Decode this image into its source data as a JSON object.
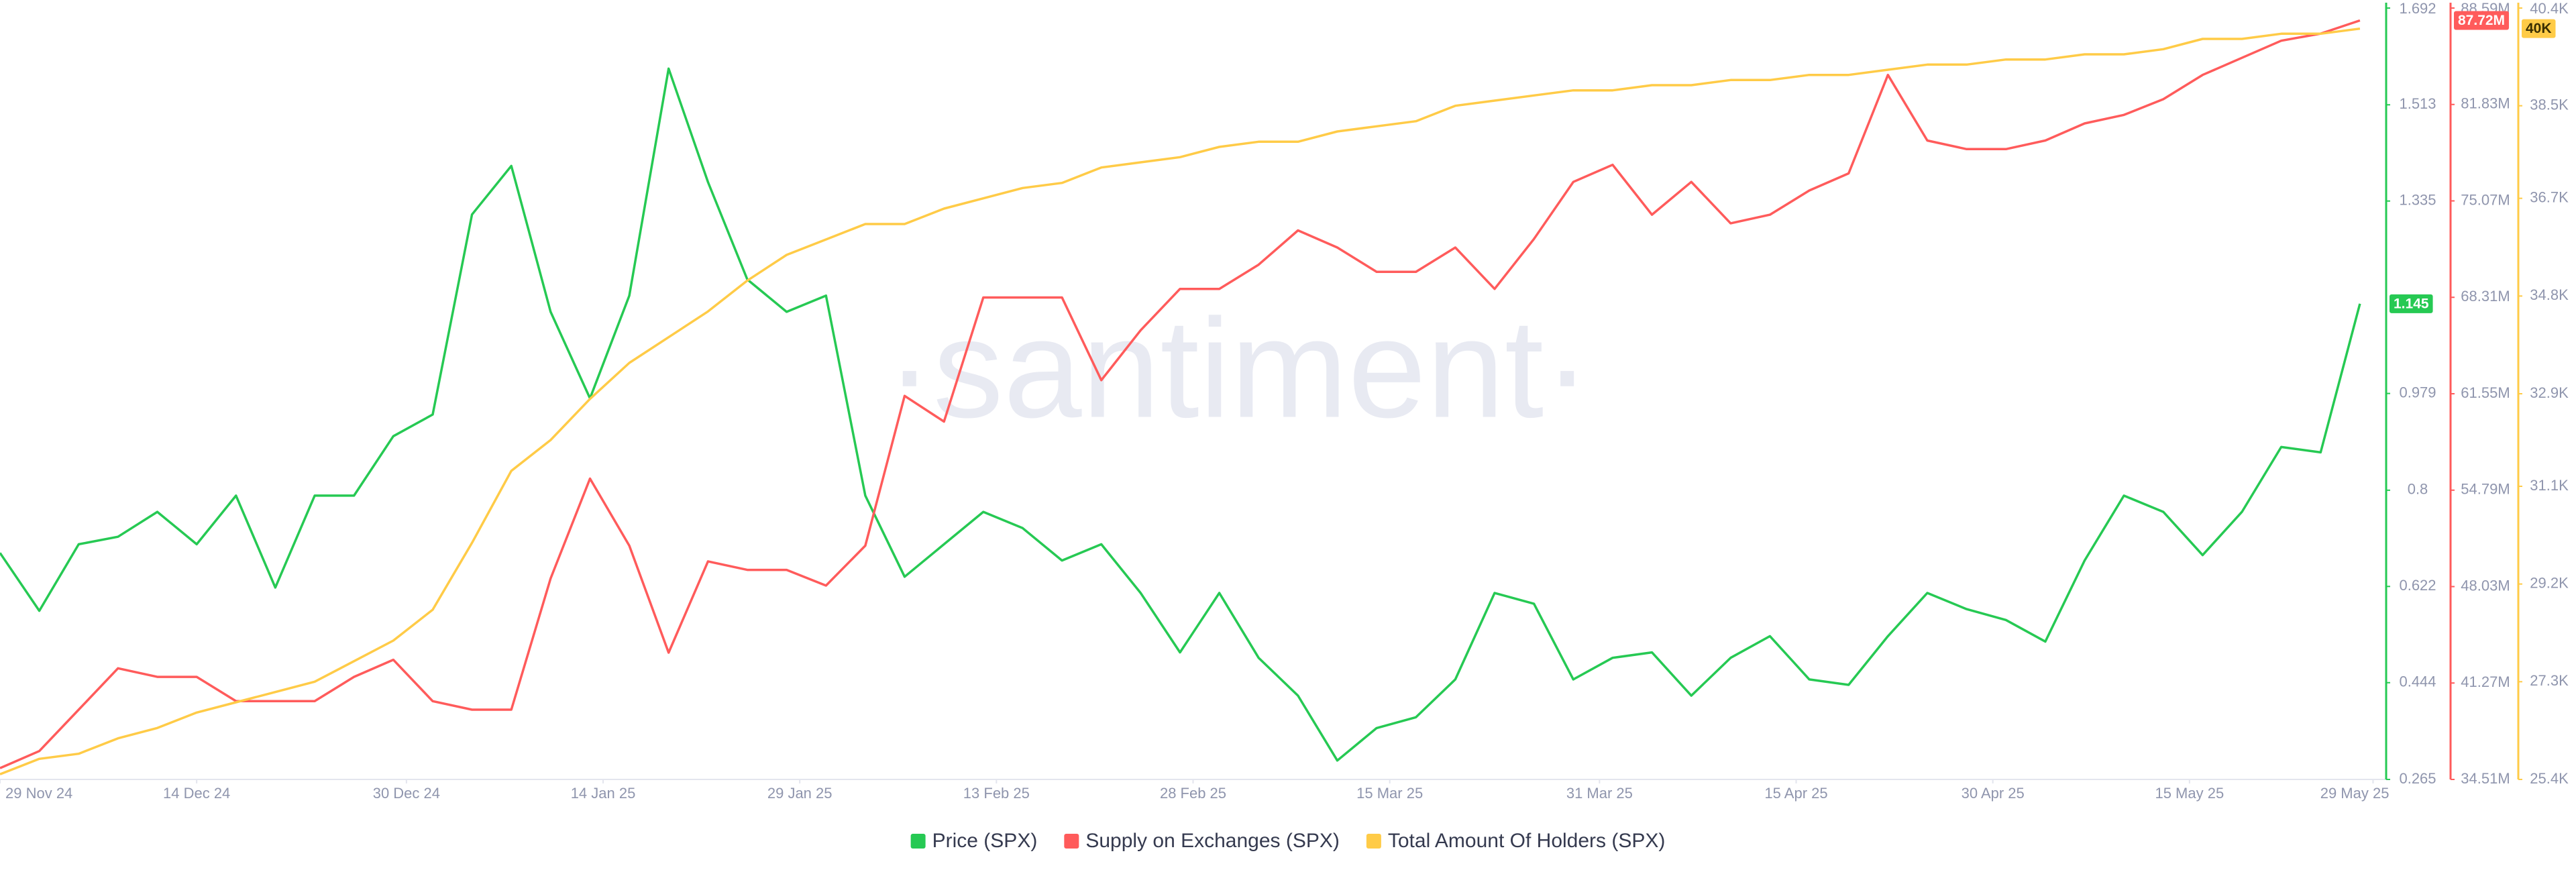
{
  "chart_data": {
    "type": "line",
    "watermark": "·santiment·",
    "x": [
      "2024-11-29",
      "2024-12-02",
      "2024-12-05",
      "2024-12-08",
      "2024-12-11",
      "2024-12-14",
      "2024-12-17",
      "2024-12-20",
      "2024-12-23",
      "2024-12-26",
      "2024-12-29",
      "2025-01-01",
      "2025-01-04",
      "2025-01-07",
      "2025-01-10",
      "2025-01-13",
      "2025-01-16",
      "2025-01-19",
      "2025-01-22",
      "2025-01-25",
      "2025-01-28",
      "2025-01-31",
      "2025-02-03",
      "2025-02-06",
      "2025-02-09",
      "2025-02-12",
      "2025-02-15",
      "2025-02-18",
      "2025-02-21",
      "2025-02-24",
      "2025-02-27",
      "2025-03-02",
      "2025-03-05",
      "2025-03-08",
      "2025-03-11",
      "2025-03-14",
      "2025-03-17",
      "2025-03-20",
      "2025-03-23",
      "2025-03-26",
      "2025-03-29",
      "2025-04-01",
      "2025-04-04",
      "2025-04-07",
      "2025-04-10",
      "2025-04-13",
      "2025-04-16",
      "2025-04-19",
      "2025-04-22",
      "2025-04-25",
      "2025-04-28",
      "2025-05-01",
      "2025-05-04",
      "2025-05-07",
      "2025-05-10",
      "2025-05-13",
      "2025-05-16",
      "2025-05-19",
      "2025-05-22",
      "2025-05-25",
      "2025-05-28"
    ],
    "xlim": [
      "2024-11-29",
      "2025-05-30"
    ],
    "xticks": [
      {
        "value": "2024-11-29",
        "label": "29 Nov 24"
      },
      {
        "value": "2024-12-14",
        "label": "14 Dec 24"
      },
      {
        "value": "2024-12-30",
        "label": "30 Dec 24"
      },
      {
        "value": "2025-01-14",
        "label": "14 Jan 25"
      },
      {
        "value": "2025-01-29",
        "label": "29 Jan 25"
      },
      {
        "value": "2025-02-13",
        "label": "13 Feb 25"
      },
      {
        "value": "2025-02-28",
        "label": "28 Feb 25"
      },
      {
        "value": "2025-03-15",
        "label": "15 Mar 25"
      },
      {
        "value": "2025-03-31",
        "label": "31 Mar 25"
      },
      {
        "value": "2025-04-15",
        "label": "15 Apr 25"
      },
      {
        "value": "2025-04-30",
        "label": "30 Apr 25"
      },
      {
        "value": "2025-05-15",
        "label": "15 May 25"
      },
      {
        "value": "2025-05-29",
        "label": "29 May 25"
      }
    ],
    "ylim": [
      0.265,
      1.692
    ],
    "yticks": [
      0.265,
      0.444,
      0.622,
      0.8,
      0.979,
      1.335,
      1.513,
      1.692
    ],
    "y2lim": [
      34.51,
      88.59
    ],
    "y2ticks": [
      {
        "value": 34.51,
        "label": "34.51M"
      },
      {
        "value": 41.27,
        "label": "41.27M"
      },
      {
        "value": 48.03,
        "label": "48.03M"
      },
      {
        "value": 54.79,
        "label": "54.79M"
      },
      {
        "value": 61.55,
        "label": "61.55M"
      },
      {
        "value": 68.31,
        "label": "68.31M"
      },
      {
        "value": 75.07,
        "label": "75.07M"
      },
      {
        "value": 81.83,
        "label": "81.83M"
      },
      {
        "value": 88.59,
        "label": "88.59M"
      }
    ],
    "y3lim": [
      25.4,
      40.4
    ],
    "y3ticks": [
      {
        "value": 25.4,
        "label": "25.4K"
      },
      {
        "value": 27.3,
        "label": "27.3K"
      },
      {
        "value": 29.2,
        "label": "29.2K"
      },
      {
        "value": 31.1,
        "label": "31.1K"
      },
      {
        "value": 32.9,
        "label": "32.9K"
      },
      {
        "value": 34.8,
        "label": "34.8K"
      },
      {
        "value": 36.7,
        "label": "36.7K"
      },
      {
        "value": 38.5,
        "label": "38.5K"
      },
      {
        "value": 40.4,
        "label": "40.4K"
      }
    ],
    "series": [
      {
        "name": "Price (SPX)",
        "color": "#26c953",
        "axis": "y",
        "values": [
          0.684,
          0.577,
          0.7,
          0.714,
          0.76,
          0.7,
          0.79,
          0.62,
          0.79,
          0.79,
          0.9,
          0.94,
          1.31,
          1.4,
          1.13,
          0.97,
          1.16,
          1.58,
          1.37,
          1.19,
          1.13,
          1.16,
          0.79,
          0.64,
          0.7,
          0.76,
          0.73,
          0.67,
          0.7,
          0.61,
          0.5,
          0.61,
          0.49,
          0.42,
          0.3,
          0.36,
          0.38,
          0.45,
          0.61,
          0.59,
          0.45,
          0.49,
          0.5,
          0.42,
          0.49,
          0.53,
          0.45,
          0.44,
          0.53,
          0.61,
          0.58,
          0.56,
          0.52,
          0.67,
          0.79,
          0.76,
          0.68,
          0.76,
          0.88,
          0.87,
          1.145
        ]
      },
      {
        "name": "Supply on Exchanges (SPX)",
        "color": "#ff5b5b",
        "axis": "y2",
        "values": [
          35.3,
          36.5,
          39.4,
          42.3,
          41.7,
          41.7,
          40.0,
          40.0,
          40.0,
          41.7,
          42.9,
          40.0,
          39.4,
          39.4,
          48.6,
          55.6,
          50.9,
          43.4,
          49.8,
          49.2,
          49.2,
          48.1,
          50.9,
          61.4,
          59.6,
          68.3,
          68.3,
          68.3,
          62.5,
          66.0,
          68.9,
          68.9,
          70.6,
          73.0,
          71.8,
          70.1,
          70.1,
          71.8,
          68.9,
          72.4,
          76.4,
          77.6,
          74.1,
          76.4,
          73.5,
          74.1,
          75.8,
          77.0,
          83.9,
          79.3,
          78.7,
          78.7,
          79.3,
          80.5,
          81.1,
          82.2,
          83.9,
          85.1,
          86.3,
          86.8,
          87.72
        ],
        "value_labels": [
          null,
          null,
          null,
          null,
          null,
          null,
          null,
          null,
          null,
          null,
          null,
          null,
          null,
          null,
          null,
          null,
          null,
          null,
          null,
          null,
          null,
          null,
          null,
          null,
          null,
          null,
          null,
          null,
          null,
          null,
          null,
          null,
          null,
          null,
          null,
          null,
          null,
          null,
          null,
          null,
          null,
          null,
          null,
          null,
          null,
          null,
          null,
          null,
          null,
          null,
          null,
          null,
          null,
          null,
          null,
          null,
          null,
          null,
          null,
          null,
          "87.72M"
        ]
      },
      {
        "name": "Total Amount Of Holders (SPX)",
        "color": "#ffcb47",
        "axis": "y3",
        "values": [
          25.5,
          25.8,
          25.9,
          26.2,
          26.4,
          26.7,
          26.9,
          27.1,
          27.3,
          27.7,
          28.1,
          28.7,
          30.0,
          31.4,
          32.0,
          32.8,
          33.5,
          34.0,
          34.5,
          35.1,
          35.6,
          35.9,
          36.2,
          36.2,
          36.5,
          36.7,
          36.9,
          37.0,
          37.3,
          37.4,
          37.5,
          37.7,
          37.8,
          37.8,
          38.0,
          38.1,
          38.2,
          38.5,
          38.6,
          38.7,
          38.8,
          38.8,
          38.9,
          38.9,
          39.0,
          39.0,
          39.1,
          39.1,
          39.2,
          39.3,
          39.3,
          39.4,
          39.4,
          39.5,
          39.5,
          39.6,
          39.8,
          39.8,
          39.9,
          39.9,
          40
        ],
        "value_labels": [
          null,
          null,
          null,
          null,
          null,
          null,
          null,
          null,
          null,
          null,
          null,
          null,
          null,
          null,
          null,
          null,
          null,
          null,
          null,
          null,
          null,
          null,
          null,
          null,
          null,
          null,
          null,
          null,
          null,
          null,
          null,
          null,
          null,
          null,
          null,
          null,
          null,
          null,
          null,
          null,
          null,
          null,
          null,
          null,
          null,
          null,
          null,
          null,
          null,
          null,
          null,
          null,
          null,
          null,
          null,
          null,
          null,
          null,
          null,
          null,
          "40K"
        ]
      }
    ]
  }
}
